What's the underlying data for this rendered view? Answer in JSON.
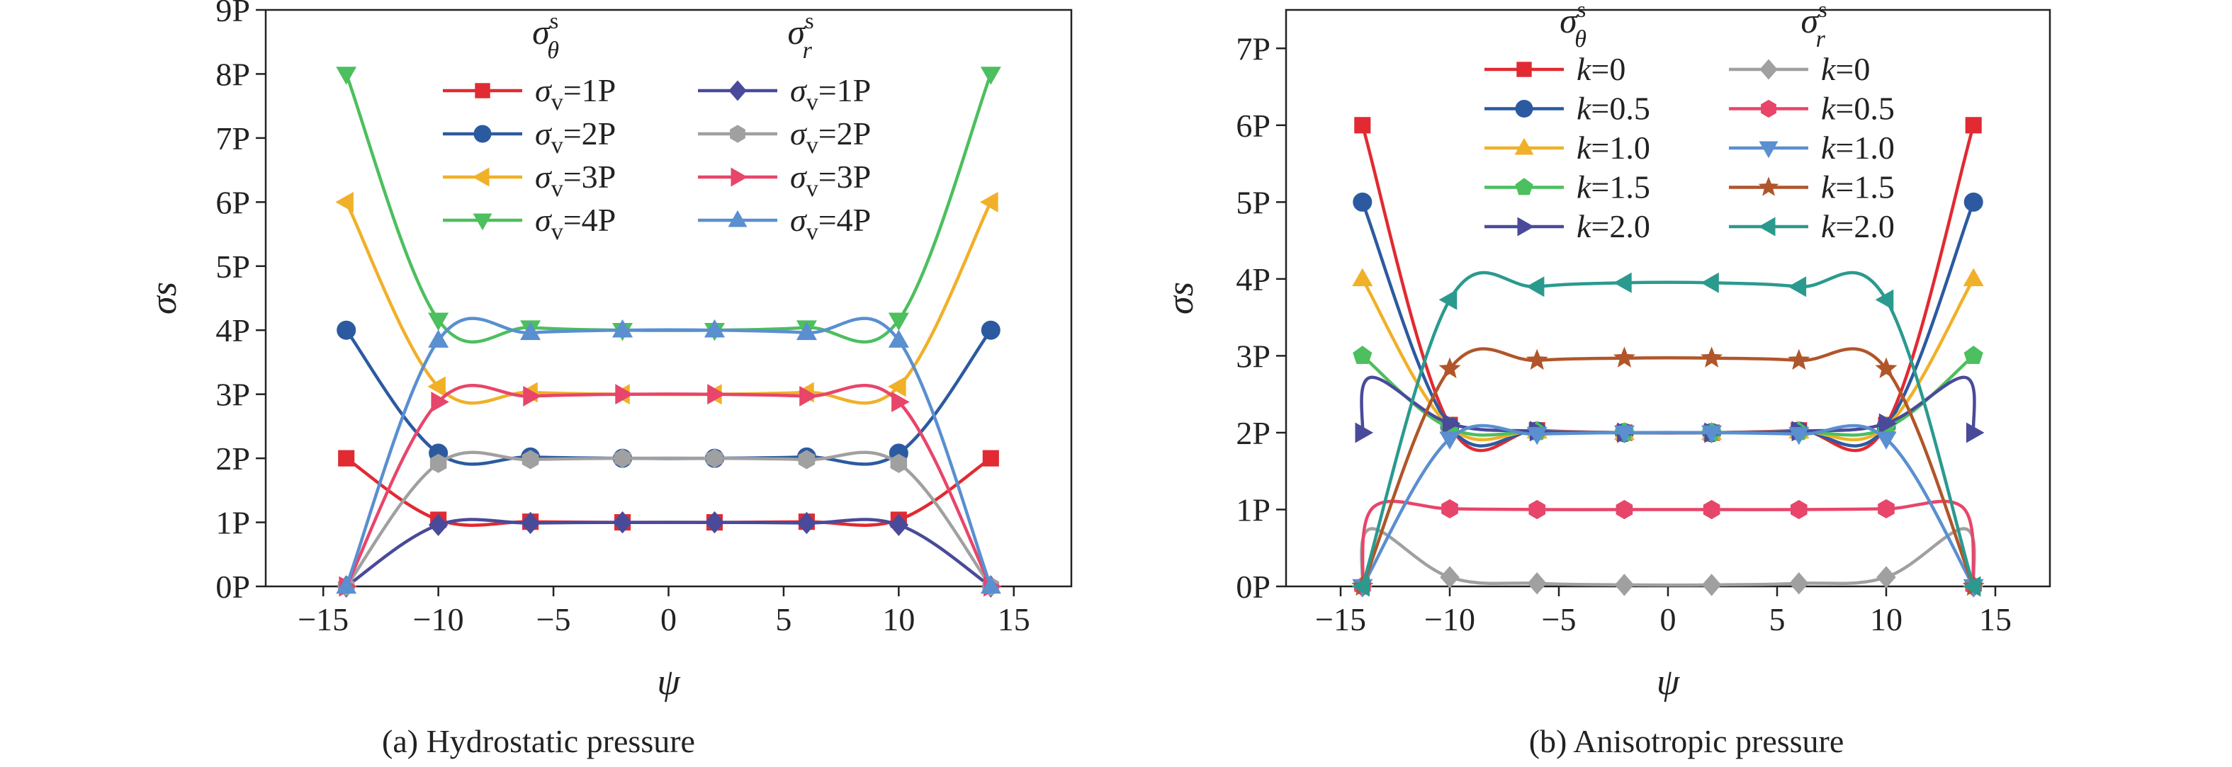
{
  "chart_data": [
    {
      "type": "line",
      "caption": "(a) Hydrostatic pressure",
      "xlabel": "ψ",
      "ylabel": "σs",
      "xlim": [
        -17.5,
        17.5
      ],
      "ylim": [
        0,
        9
      ],
      "xticks": [
        -15,
        -10,
        -5,
        0,
        5,
        10,
        15
      ],
      "xtick_labels": [
        "−15",
        "−10",
        "−5",
        "0",
        "5",
        "10",
        "15"
      ],
      "yticks": [
        0,
        1,
        2,
        3,
        4,
        5,
        6,
        7,
        8,
        9
      ],
      "ytick_labels": [
        "0P",
        "1P",
        "2P",
        "3P",
        "4P",
        "5P",
        "6P",
        "7P",
        "8P",
        "9P"
      ],
      "grid": false,
      "legend_position": "top",
      "legend_headers": {
        "theta": {
          "base": "σ",
          "sup": "s",
          "sub": "θ"
        },
        "r": {
          "base": "σ",
          "sup": "s",
          "sub": "r"
        }
      },
      "series": [
        {
          "name": "σv=1P",
          "label_prefix": "σ",
          "label_sub": "v",
          "label_suffix": "=1P",
          "group": "theta",
          "color": "#e12a32",
          "marker": "square",
          "x": [
            -14,
            -10,
            -6,
            -2,
            2,
            6,
            10,
            14
          ],
          "y": [
            2.0,
            1.04,
            1.01,
            1.0,
            1.0,
            1.01,
            1.04,
            2.0
          ]
        },
        {
          "name": "σv=2P",
          "label_prefix": "σ",
          "label_sub": "v",
          "label_suffix": "=2P",
          "group": "theta",
          "color": "#2c5aa0",
          "marker": "circle",
          "x": [
            -14,
            -10,
            -6,
            -2,
            2,
            6,
            10,
            14
          ],
          "y": [
            4.0,
            2.08,
            2.02,
            2.0,
            2.0,
            2.02,
            2.08,
            4.0
          ]
        },
        {
          "name": "σv=3P",
          "label_prefix": "σ",
          "label_sub": "v",
          "label_suffix": "=3P",
          "group": "theta",
          "color": "#f0b028",
          "marker": "triangle-left",
          "x": [
            -14,
            -10,
            -6,
            -2,
            2,
            6,
            10,
            14
          ],
          "y": [
            6.0,
            3.12,
            3.03,
            3.0,
            3.0,
            3.03,
            3.12,
            6.0
          ]
        },
        {
          "name": "σv=4P",
          "label_prefix": "σ",
          "label_sub": "v",
          "label_suffix": "=4P",
          "group": "theta",
          "color": "#4cbf5e",
          "marker": "triangle-down",
          "x": [
            -14,
            -10,
            -6,
            -2,
            2,
            6,
            10,
            14
          ],
          "y": [
            8.0,
            4.16,
            4.04,
            4.0,
            4.0,
            4.04,
            4.16,
            8.0
          ]
        },
        {
          "name": "σv=1P",
          "label_prefix": "σ",
          "label_sub": "v",
          "label_suffix": "=1P",
          "group": "r",
          "color": "#4a4a9a",
          "marker": "diamond",
          "x": [
            -14,
            -10,
            -6,
            -2,
            2,
            6,
            10,
            14
          ],
          "y": [
            0.0,
            0.96,
            0.99,
            1.0,
            1.0,
            0.99,
            0.96,
            0.0
          ]
        },
        {
          "name": "σv=2P",
          "label_prefix": "σ",
          "label_sub": "v",
          "label_suffix": "=2P",
          "group": "r",
          "color": "#a0a0a0",
          "marker": "hexagon",
          "x": [
            -14,
            -10,
            -6,
            -2,
            2,
            6,
            10,
            14
          ],
          "y": [
            0.0,
            1.92,
            1.98,
            2.0,
            2.0,
            1.98,
            1.92,
            0.0
          ]
        },
        {
          "name": "σv=3P",
          "label_prefix": "σ",
          "label_sub": "v",
          "label_suffix": "=3P",
          "group": "r",
          "color": "#e8456a",
          "marker": "triangle-right",
          "x": [
            -14,
            -10,
            -6,
            -2,
            2,
            6,
            10,
            14
          ],
          "y": [
            0.0,
            2.88,
            2.97,
            3.0,
            3.0,
            2.97,
            2.88,
            0.0
          ]
        },
        {
          "name": "σv=4P",
          "label_prefix": "σ",
          "label_sub": "v",
          "label_suffix": "=4P",
          "group": "r",
          "color": "#5a8fd0",
          "marker": "triangle-up",
          "x": [
            -14,
            -10,
            -6,
            -2,
            2,
            6,
            10,
            14
          ],
          "y": [
            0.0,
            3.84,
            3.96,
            4.0,
            4.0,
            3.96,
            3.84,
            0.0
          ]
        }
      ]
    },
    {
      "type": "line",
      "caption": "(b) Anisotropic pressure",
      "xlabel": "ψ",
      "ylabel": "σs",
      "xlim": [
        -17.5,
        17.5
      ],
      "ylim": [
        0,
        7.5
      ],
      "xticks": [
        -15,
        -10,
        -5,
        0,
        5,
        10,
        15
      ],
      "xtick_labels": [
        "−15",
        "−10",
        "−5",
        "0",
        "5",
        "10",
        "15"
      ],
      "yticks": [
        0,
        1,
        2,
        3,
        4,
        5,
        6,
        7
      ],
      "ytick_labels": [
        "0P",
        "1P",
        "2P",
        "3P",
        "4P",
        "5P",
        "6P",
        "7P"
      ],
      "grid": false,
      "legend_position": "top",
      "legend_headers": {
        "theta": {
          "base": "σ",
          "sup": "s",
          "sub": "θ"
        },
        "r": {
          "base": "σ",
          "sup": "s",
          "sub": "r"
        }
      },
      "series": [
        {
          "name": "k=0",
          "label_prefix": "k",
          "label_sub": "",
          "label_suffix": "=0",
          "group": "theta",
          "color": "#e12a32",
          "marker": "square",
          "x": [
            -14,
            -10,
            -6,
            -2,
            2,
            6,
            10,
            14
          ],
          "y": [
            6.0,
            2.1,
            2.03,
            2.0,
            2.0,
            2.03,
            2.1,
            6.0
          ]
        },
        {
          "name": "k=0.5",
          "label_prefix": "k",
          "label_sub": "",
          "label_suffix": "=0.5",
          "group": "theta",
          "color": "#2c5aa0",
          "marker": "circle",
          "x": [
            -14,
            -10,
            -6,
            -2,
            2,
            6,
            10,
            14
          ],
          "y": [
            5.0,
            2.08,
            2.02,
            2.0,
            2.0,
            2.02,
            2.08,
            5.0
          ]
        },
        {
          "name": "k=1.0",
          "label_prefix": "k",
          "label_sub": "",
          "label_suffix": "=1.0",
          "group": "theta",
          "color": "#f0b028",
          "marker": "triangle-up",
          "x": [
            -14,
            -10,
            -6,
            -2,
            2,
            6,
            10,
            14
          ],
          "y": [
            4.0,
            2.08,
            2.02,
            2.0,
            2.0,
            2.02,
            2.08,
            4.0
          ]
        },
        {
          "name": "k=1.5",
          "label_prefix": "k",
          "label_sub": "",
          "label_suffix": "=1.5",
          "group": "theta",
          "color": "#4cbf5e",
          "marker": "pentagon",
          "x": [
            -14,
            -10,
            -6,
            -2,
            2,
            6,
            10,
            14
          ],
          "y": [
            3.0,
            2.06,
            2.01,
            2.0,
            2.0,
            2.01,
            2.06,
            3.0
          ]
        },
        {
          "name": "k=2.0",
          "label_prefix": "k",
          "label_sub": "",
          "label_suffix": "=2.0",
          "group": "theta",
          "color": "#4a4a9a",
          "marker": "triangle-right",
          "x": [
            -14,
            -13.6,
            -10,
            -6,
            -2,
            2,
            6,
            10,
            13.6,
            14
          ],
          "y": [
            2.0,
            2.72,
            2.12,
            2.02,
            2.0,
            2.0,
            2.02,
            2.12,
            2.72,
            2.0
          ]
        },
        {
          "name": "k=0",
          "label_prefix": "k",
          "label_sub": "",
          "label_suffix": "=0",
          "group": "r",
          "color": "#a0a0a0",
          "marker": "diamond",
          "x": [
            -14,
            -13.6,
            -10,
            -6,
            -2,
            2,
            6,
            10,
            13.6,
            14
          ],
          "y": [
            0.0,
            0.75,
            0.12,
            0.04,
            0.02,
            0.02,
            0.04,
            0.12,
            0.75,
            0.0
          ]
        },
        {
          "name": "k=0.5",
          "label_prefix": "k",
          "label_sub": "",
          "label_suffix": "=0.5",
          "group": "r",
          "color": "#e8456a",
          "marker": "hexagon",
          "x": [
            -14,
            -13.5,
            -10,
            -6,
            -2,
            2,
            6,
            10,
            13.5,
            14
          ],
          "y": [
            0.0,
            1.03,
            1.01,
            1.0,
            1.0,
            1.0,
            1.0,
            1.01,
            1.03,
            0.0
          ]
        },
        {
          "name": "k=1.0",
          "label_prefix": "k",
          "label_sub": "",
          "label_suffix": "=1.0",
          "group": "r",
          "color": "#5a8fd0",
          "marker": "triangle-down",
          "x": [
            -14,
            -10,
            -6,
            -2,
            2,
            6,
            10,
            14
          ],
          "y": [
            0.0,
            1.92,
            1.98,
            2.0,
            2.0,
            1.98,
            1.92,
            0.0
          ]
        },
        {
          "name": "k=1.5",
          "label_prefix": "k",
          "label_sub": "",
          "label_suffix": "=1.5",
          "group": "r",
          "color": "#b0562a",
          "marker": "star",
          "x": [
            -14,
            -10,
            -6,
            -2,
            2,
            6,
            10,
            14
          ],
          "y": [
            0.0,
            2.83,
            2.94,
            2.97,
            2.97,
            2.94,
            2.83,
            0.0
          ]
        },
        {
          "name": "k=2.0",
          "label_prefix": "k",
          "label_sub": "",
          "label_suffix": "=2.0",
          "group": "r",
          "color": "#2a9a8e",
          "marker": "triangle-left",
          "x": [
            -14,
            -10,
            -6,
            -2,
            2,
            6,
            10,
            14
          ],
          "y": [
            0.0,
            3.73,
            3.9,
            3.95,
            3.95,
            3.9,
            3.73,
            0.0
          ]
        }
      ]
    }
  ]
}
